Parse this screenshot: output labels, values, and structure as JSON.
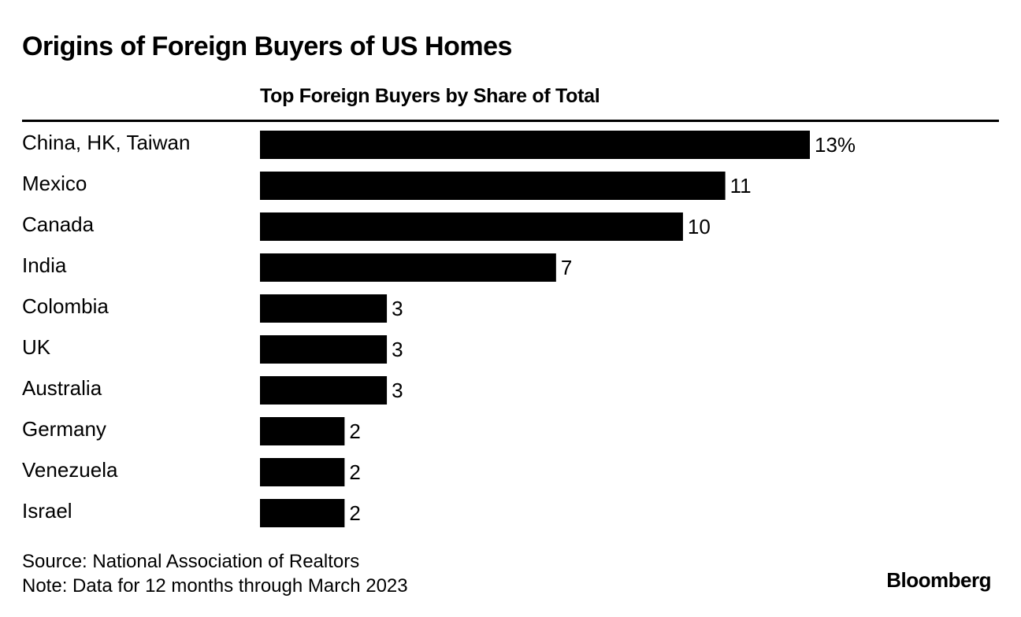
{
  "title": "Origins of Foreign Buyers of US Homes",
  "footer": {
    "source": "Source: National Association of Realtors",
    "note": "Note: Data for 12 months through March 2023",
    "brand": "Bloomberg"
  },
  "chart_data": {
    "type": "bar",
    "orientation": "horizontal",
    "title": "Top Foreign Buyers by Share of Total",
    "categories": [
      "China, HK, Taiwan",
      "Mexico",
      "Canada",
      "India",
      "Colombia",
      "UK",
      "Australia",
      "Germany",
      "Venezuela",
      "Israel"
    ],
    "values": [
      13,
      11,
      10,
      7,
      3,
      3,
      3,
      2,
      2,
      2
    ],
    "value_labels": [
      "13%",
      "11",
      "10",
      "7",
      "3",
      "3",
      "3",
      "2",
      "2",
      "2"
    ],
    "xlim": [
      0,
      13
    ],
    "bar_color": "#000000",
    "grid": false,
    "legend": "none"
  }
}
